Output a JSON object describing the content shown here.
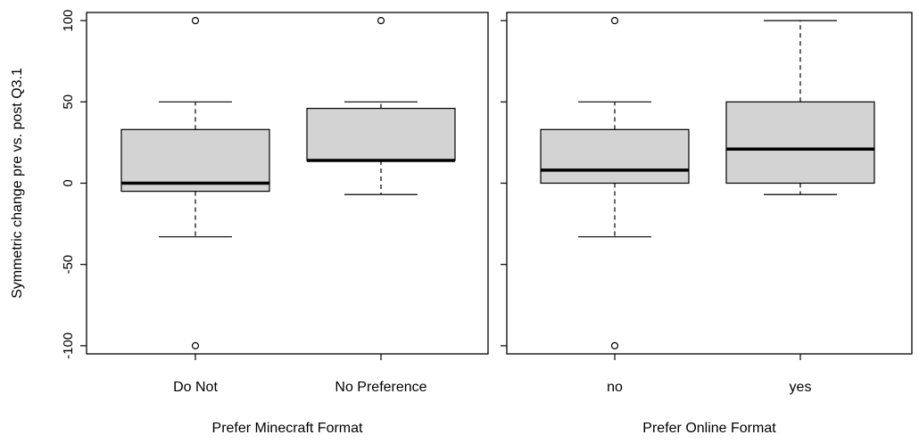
{
  "chart_data": [
    {
      "type": "box",
      "xlabel": "Prefer Minecraft Format",
      "ylabel": "Symmetric change pre vs. post Q3.1",
      "ylim": [
        -105,
        105
      ],
      "yticks": [
        -100,
        -50,
        0,
        50,
        100
      ],
      "ytick_labels": [
        "-100",
        "-50",
        "0",
        "50",
        "100"
      ],
      "categories": [
        "Do Not",
        "No Preference"
      ],
      "boxes": [
        {
          "category": "Do Not",
          "whisker_low": -33,
          "q1": -5,
          "median": 0,
          "q3": 33,
          "whisker_high": 50,
          "outliers": [
            100,
            -100
          ]
        },
        {
          "category": "No Preference",
          "whisker_low": -7,
          "q1": 14,
          "median": 14,
          "q3": 46,
          "whisker_high": 50,
          "outliers": [
            100
          ]
        }
      ],
      "box_fill": "#d3d3d3"
    },
    {
      "type": "box",
      "xlabel": "Prefer Online Format",
      "ylabel": "",
      "ylim": [
        -105,
        105
      ],
      "yticks": [
        -100,
        -50,
        0,
        50,
        100
      ],
      "ytick_labels": [],
      "categories": [
        "no",
        "yes"
      ],
      "boxes": [
        {
          "category": "no",
          "whisker_low": -33,
          "q1": 0,
          "median": 8,
          "q3": 33,
          "whisker_high": 50,
          "outliers": [
            100,
            -100
          ]
        },
        {
          "category": "yes",
          "whisker_low": -7,
          "q1": 0,
          "median": 21,
          "q3": 50,
          "whisker_high": 100,
          "outliers": []
        }
      ],
      "box_fill": "#d3d3d3"
    }
  ]
}
